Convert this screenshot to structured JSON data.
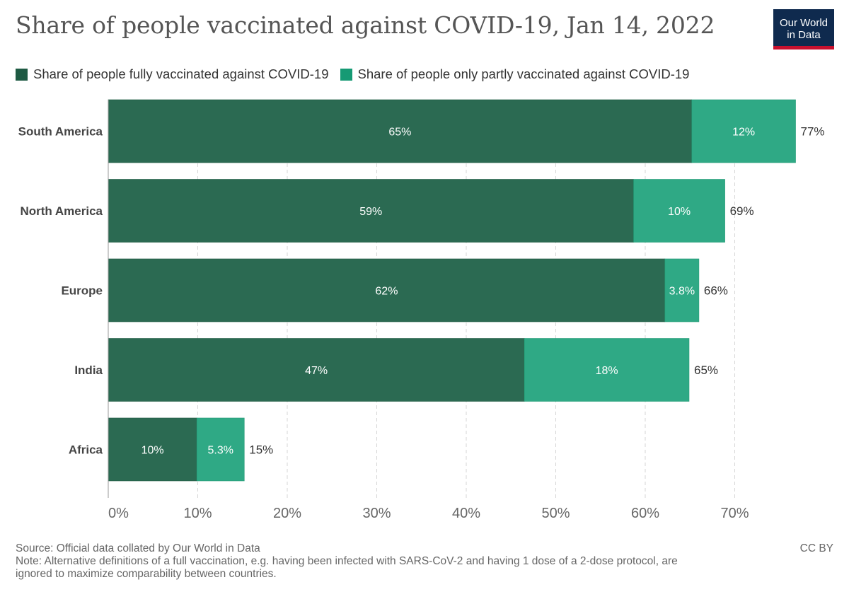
{
  "header": {
    "title": "Share of people vaccinated against COVID-19, Jan 14, 2022",
    "logo_line1": "Our World",
    "logo_line2": "in Data"
  },
  "chart_data": {
    "type": "bar",
    "orientation": "horizontal",
    "stacked": true,
    "title": "Share of people vaccinated against COVID-19, Jan 14, 2022",
    "categories": [
      "South America",
      "North America",
      "Europe",
      "India",
      "Africa"
    ],
    "series": [
      {
        "name": "Share of people fully vaccinated against COVID-19",
        "color": "#2b6a52",
        "values": [
          65.2,
          58.7,
          62.2,
          46.5,
          9.9
        ],
        "labels": [
          "65%",
          "59%",
          "62%",
          "47%",
          "10%"
        ]
      },
      {
        "name": "Share of people only partly vaccinated against COVID-19",
        "color": "#2fa985",
        "values": [
          11.6,
          10.2,
          3.8,
          18.4,
          5.3
        ],
        "labels": [
          "12%",
          "10%",
          "3.8%",
          "18%",
          "5.3%"
        ]
      }
    ],
    "totals": [
      "77%",
      "69%",
      "66%",
      "65%",
      "15%"
    ],
    "xlim": [
      0,
      77
    ],
    "ticks": [
      0,
      10,
      20,
      30,
      40,
      50,
      60,
      70
    ],
    "tick_labels": [
      "0%",
      "10%",
      "20%",
      "30%",
      "40%",
      "50%",
      "60%",
      "70%"
    ],
    "grid": true,
    "legend_position": "top"
  },
  "legend": {
    "color_full": "#1e5a43",
    "color_partial": "#169a74"
  },
  "footer": {
    "source": "Source: Official data collated by Our World in Data",
    "note_line1": "Note: Alternative definitions of a full vaccination, e.g. having been infected with SARS-CoV-2 and having 1 dose of a 2-dose protocol, are",
    "note_line2": "ignored to maximize comparability between countries.",
    "license": "CC BY"
  }
}
